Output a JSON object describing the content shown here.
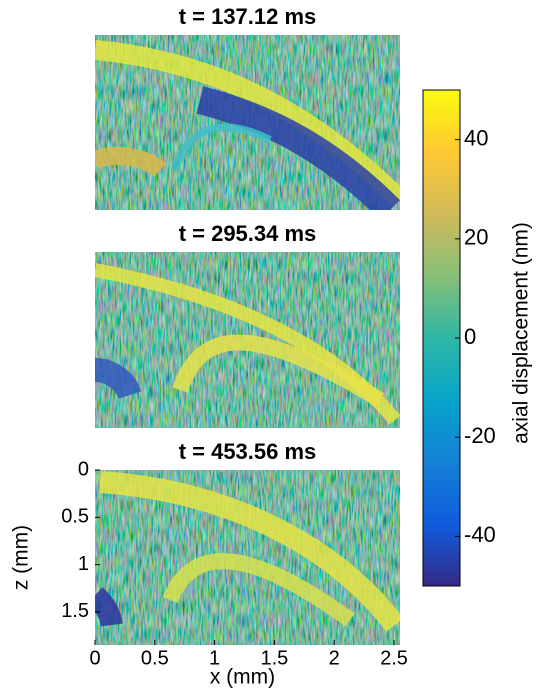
{
  "chart_data": [
    {
      "type": "heatmap",
      "title": "t = 137.12 ms"
    },
    {
      "type": "heatmap",
      "title": "t = 295.34 ms"
    },
    {
      "type": "heatmap",
      "title": "t = 453.56 ms",
      "xlabel": "x (mm)",
      "ylabel": "z (mm)",
      "xlim": [
        0,
        2.55
      ],
      "xticks": [
        0,
        0.5,
        1,
        1.5,
        2,
        2.5
      ],
      "ylim": [
        0,
        1.85
      ],
      "yticks": [
        0,
        0.5,
        1,
        1.5
      ],
      "y_inverted": true
    }
  ],
  "colorbar": {
    "label": "axial displacement (nm)",
    "lim": [
      -50,
      50
    ],
    "ticks": [
      -40,
      -20,
      0,
      20,
      40
    ],
    "colormap": [
      "#352a87",
      "#0f5cdd",
      "#1481d6",
      "#06a4ca",
      "#2eb7a4",
      "#87bf77",
      "#d1bb59",
      "#fec832",
      "#f9fb0e"
    ]
  }
}
